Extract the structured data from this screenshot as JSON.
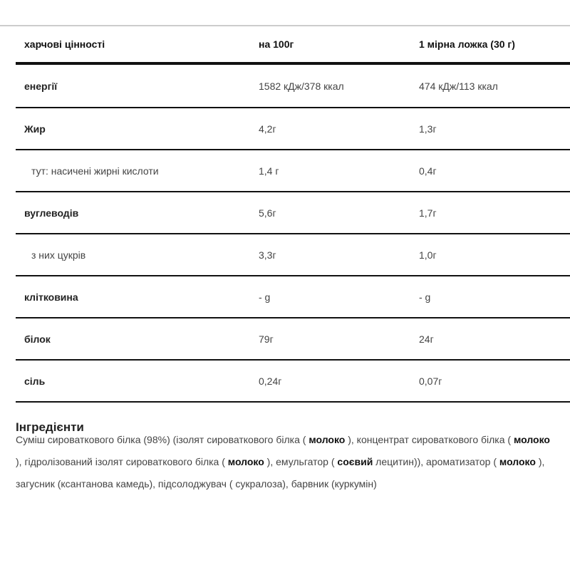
{
  "table": {
    "headers": [
      "харчові цінності",
      "на 100г",
      "1 мірна ложка (30 г)"
    ],
    "rows": [
      {
        "label": "енергії",
        "per100": "1582 кДж/378 ккал",
        "perScoop": "474 кДж/113 ккал"
      },
      {
        "label": "Жир",
        "per100": "4,2г",
        "perScoop": "1,3г"
      },
      {
        "label": "тут: насичені жирні кислоти",
        "per100": "1,4 г",
        "perScoop": "0,4г"
      },
      {
        "label": "вуглеводів",
        "per100": "5,6г",
        "perScoop": "1,7г"
      },
      {
        "label": "з них цукрів",
        "per100": "3,3г",
        "perScoop": "1,0г"
      },
      {
        "label": "клітковина",
        "per100": "- g",
        "perScoop": "- g"
      },
      {
        "label": "білок",
        "per100": "79г",
        "perScoop": "24г"
      },
      {
        "label": "сіль",
        "per100": "0,24г",
        "perScoop": "0,07г"
      }
    ]
  },
  "ingredients": {
    "title": "Інгредієнти",
    "parts": [
      "Суміш сироваткового білка (98%) (ізолят сироваткового білка ( ",
      "молоко",
      " ), концентрат сироваткового білка ( ",
      "молоко",
      " ), гідролізований ізолят сироваткового білка ( ",
      "молоко",
      " ), емульгатор ( ",
      "соєвий",
      " лецитин)), ароматизатор ( ",
      "молоко",
      " ), загусник (ксантанова камедь), підсолоджувач ( сукралоза), барвник (куркумін)"
    ]
  }
}
